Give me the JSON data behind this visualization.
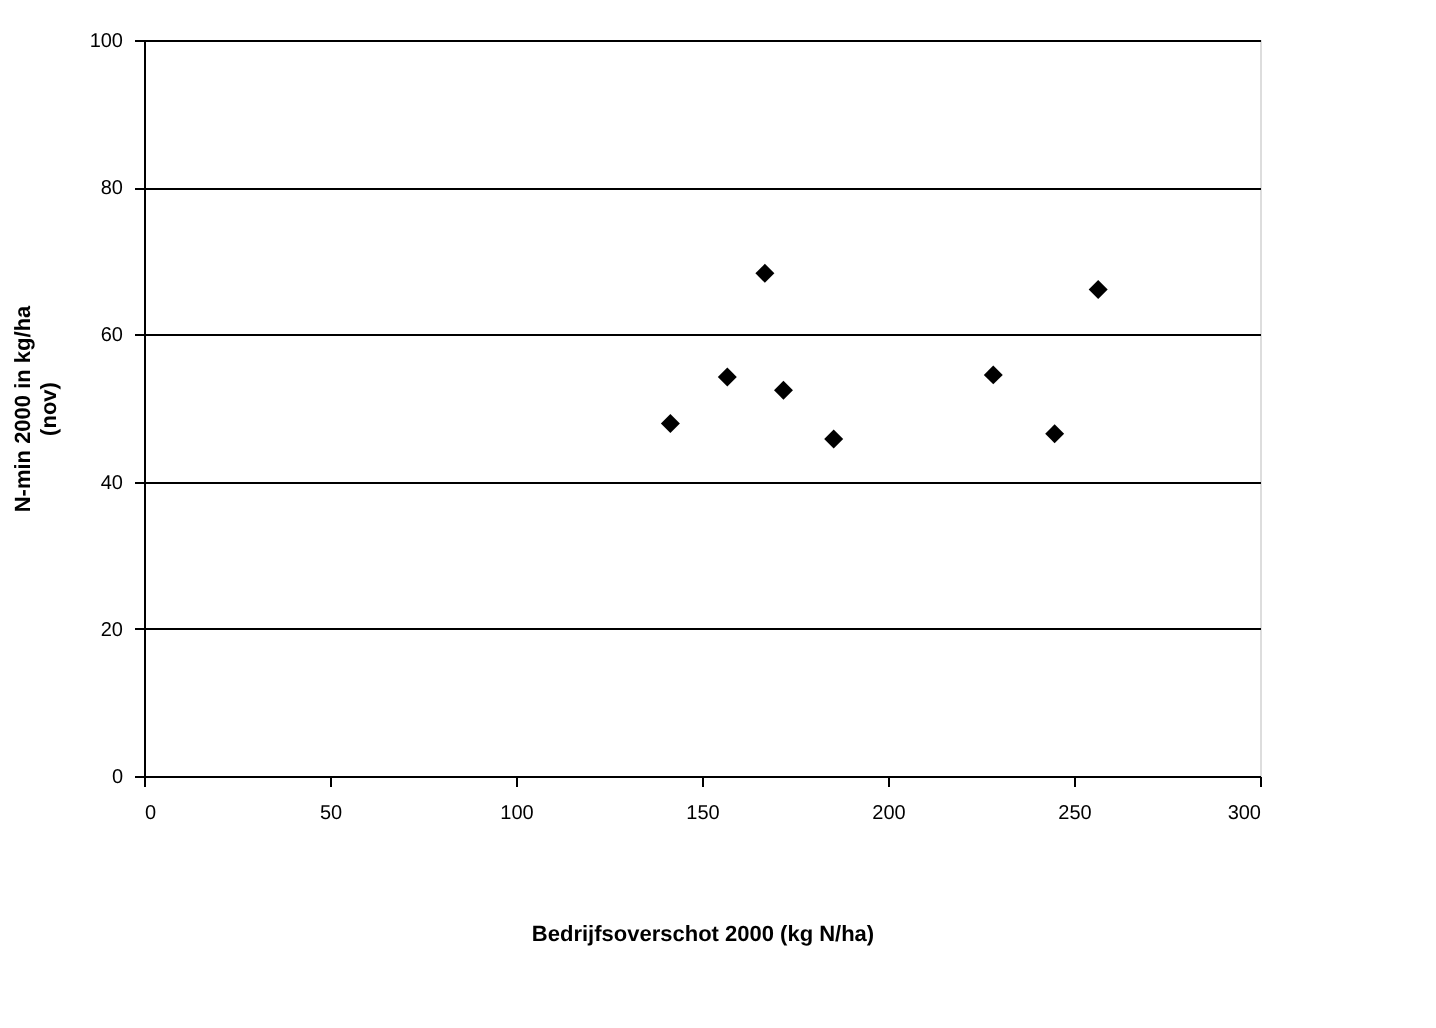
{
  "chart_data": {
    "type": "scatter",
    "xlabel": "Bedrijfsoverschot 2000 (kg N/ha)",
    "ylabel": "N-min 2000 in kg/ha\n(nov)",
    "x": [
      141.5,
      156.8,
      166.9,
      171.9,
      185.4,
      228.3,
      244.8,
      256.5
    ],
    "series": [
      {
        "color": "#000000",
        "values": [
          47.9,
          54.2,
          68.3,
          52.4,
          45.8,
          54.5,
          46.5,
          66.1
        ]
      }
    ],
    "xlim": [
      0,
      300
    ],
    "xticks": [
      0,
      50,
      100,
      150,
      200,
      250,
      300
    ],
    "ylim": [
      0,
      100
    ],
    "yticks": [
      0,
      20,
      40,
      60,
      80,
      100
    ],
    "grid": "y",
    "marker": "diamond",
    "legend": false
  }
}
